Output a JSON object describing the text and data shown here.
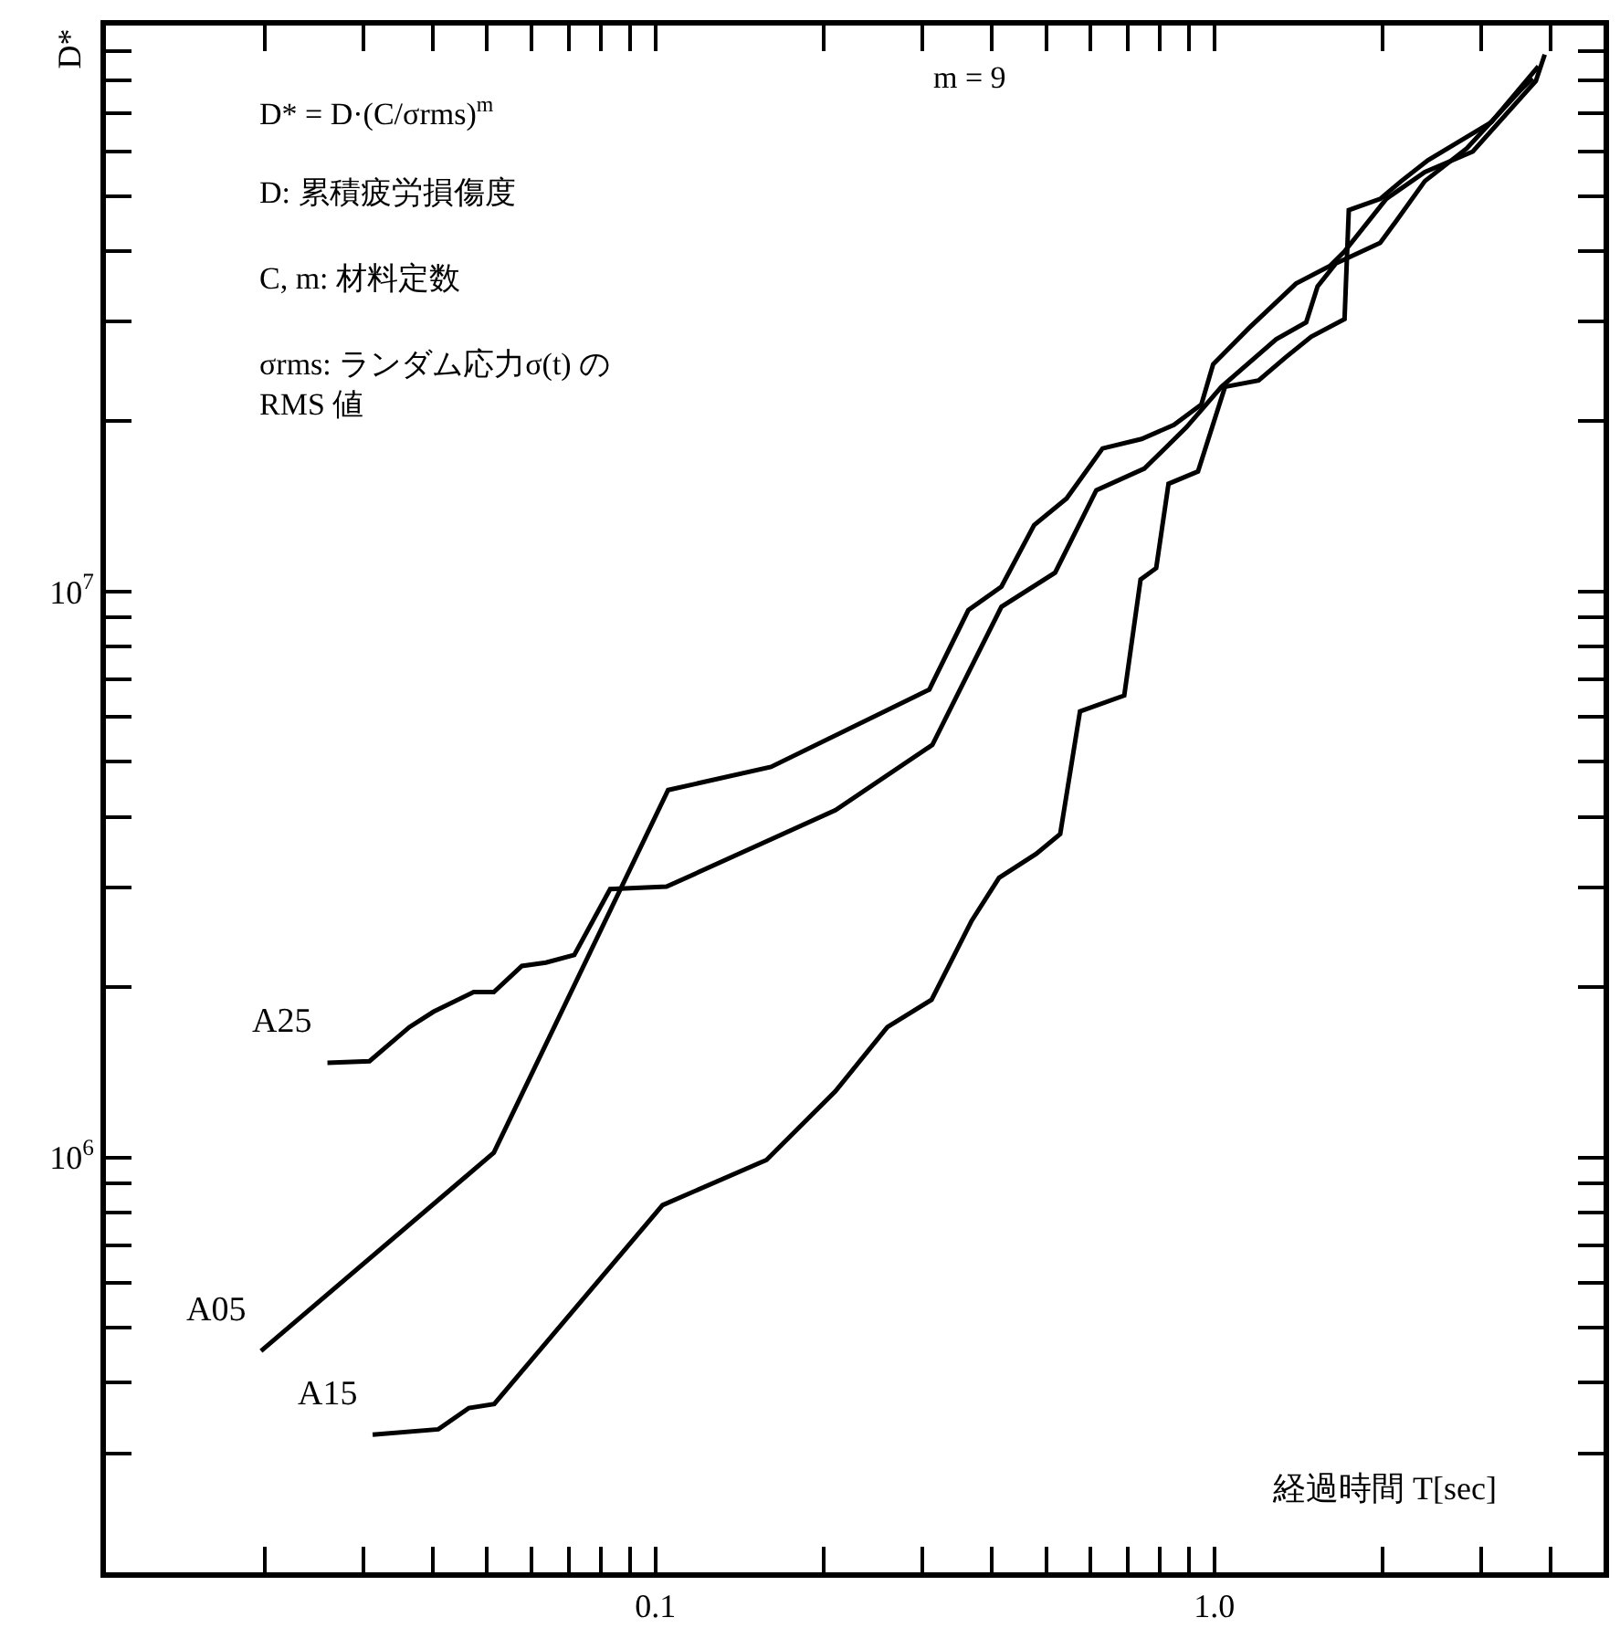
{
  "chart_data": {
    "type": "line",
    "ylabel": "D*",
    "xlabel": "経過時間 T[sec]",
    "log": "xy",
    "grid": false,
    "legend": false,
    "marker": "none",
    "line_style": "solid",
    "annotations": [
      "D* = D·(C/σrms)$^{m}$",
      "D: 累積疲労損傷度",
      "C, m: 材料定数",
      "σrms: ランダム応力σ(t) の\nRMS 値",
      "m = 9"
    ],
    "xlim": [
      0.0104,
      4.97
    ],
    "ylim": [
      185000,
      100000000
    ],
    "xticks": [
      {
        "value": 0.02,
        "label": null
      },
      {
        "value": 0.03,
        "label": null
      },
      {
        "value": 0.04,
        "label": null
      },
      {
        "value": 0.05,
        "label": null
      },
      {
        "value": 0.06,
        "label": null
      },
      {
        "value": 0.07,
        "label": null
      },
      {
        "value": 0.08,
        "label": null
      },
      {
        "value": 0.09,
        "label": null
      },
      {
        "value": 0.1,
        "label": "0.1"
      },
      {
        "value": 0.2,
        "label": null
      },
      {
        "value": 0.3,
        "label": null
      },
      {
        "value": 0.4,
        "label": null
      },
      {
        "value": 0.5,
        "label": null
      },
      {
        "value": 0.6,
        "label": null
      },
      {
        "value": 0.7,
        "label": null
      },
      {
        "value": 0.8,
        "label": null
      },
      {
        "value": 0.9,
        "label": null
      },
      {
        "value": 1,
        "label": "1.0"
      },
      {
        "value": 2,
        "label": null
      },
      {
        "value": 3,
        "label": null
      },
      {
        "value": 4,
        "label": null
      }
    ],
    "yticks": [
      {
        "value": 300000,
        "label": null
      },
      {
        "value": 400000,
        "label": null
      },
      {
        "value": 500000,
        "label": null
      },
      {
        "value": 600000,
        "label": null
      },
      {
        "value": 700000,
        "label": null
      },
      {
        "value": 800000,
        "label": null
      },
      {
        "value": 900000,
        "label": null
      },
      {
        "value": 1000000,
        "label": "10$^{6}$"
      },
      {
        "value": 2000000,
        "label": null
      },
      {
        "value": 3000000,
        "label": null
      },
      {
        "value": 4000000,
        "label": null
      },
      {
        "value": 5000000,
        "label": null
      },
      {
        "value": 6000000,
        "label": null
      },
      {
        "value": 7000000,
        "label": null
      },
      {
        "value": 8000000,
        "label": null
      },
      {
        "value": 9000000,
        "label": null
      },
      {
        "value": 10000000,
        "label": "10$^{7}$"
      },
      {
        "value": 20000000,
        "label": null
      },
      {
        "value": 30000000,
        "label": null
      },
      {
        "value": 40000000,
        "label": null
      },
      {
        "value": 50000000,
        "label": null
      },
      {
        "value": 60000000,
        "label": null
      },
      {
        "value": 70000000,
        "label": null
      },
      {
        "value": 80000000,
        "label": null
      },
      {
        "value": 90000000,
        "label": null
      }
    ],
    "series": [
      {
        "name": "A25",
        "color": "#000000",
        "x": [
          0.0259,
          0.0308,
          0.0363,
          0.0401,
          0.0473,
          0.0514,
          0.0577,
          0.0637,
          0.0716,
          0.083,
          0.1047,
          0.21,
          0.313,
          0.416,
          0.519,
          0.615,
          0.75,
          0.891,
          1.03,
          1.29,
          1.46,
          1.53,
          1.65,
          1.98,
          2.11,
          2.38,
          2.83,
          3.53,
          3.71
        ],
        "values": [
          1470000,
          1480000,
          1700000,
          1810000,
          1960000,
          1960000,
          2180000,
          2210000,
          2280000,
          2980000,
          3010000,
          4110000,
          5360000,
          9400000,
          10800000,
          15100000,
          16500000,
          19500000,
          23000000,
          27900000,
          29900000,
          34600000,
          38000000,
          41300000,
          45000000,
          53100000,
          60700000,
          76900000,
          80700000
        ]
      },
      {
        "name": "A05",
        "color": "#000000",
        "x": [
          0.0197,
          0.0514,
          0.1054,
          0.161,
          0.309,
          0.363,
          0.416,
          0.476,
          0.544,
          0.631,
          0.741,
          0.847,
          0.948,
          0.995,
          1.153,
          1.4,
          1.61,
          1.71,
          2.03,
          2.38,
          2.9,
          3.76,
          3.9
        ],
        "values": [
          455000,
          1020000,
          4460000,
          4900000,
          6710000,
          9270000,
          10200000,
          13100000,
          14600000,
          17900000,
          18600000,
          19700000,
          21400000,
          25200000,
          29200000,
          35000000,
          37600000,
          39900000,
          49400000,
          55100000,
          59900000,
          79800000,
          88900000
        ]
      },
      {
        "name": "A15",
        "color": "#000000",
        "x": [
          0.0312,
          0.0409,
          0.0464,
          0.0515,
          0.103,
          0.158,
          0.21,
          0.26,
          0.312,
          0.368,
          0.412,
          0.48,
          0.53,
          0.575,
          0.69,
          0.738,
          0.787,
          0.828,
          0.935,
          1.045,
          1.2,
          1.34,
          1.49,
          1.71,
          1.74,
          1.98,
          2.16,
          2.41,
          3.13,
          3.8
        ],
        "values": [
          324000,
          331000,
          361000,
          367000,
          824000,
          990000,
          1310000,
          1700000,
          1900000,
          2620000,
          3120000,
          3440000,
          3730000,
          6140000,
          6550000,
          10500000,
          11000000,
          15500000,
          16300000,
          23000000,
          23600000,
          25900000,
          28200000,
          30300000,
          47200000,
          49400000,
          53100000,
          57800000,
          67500000,
          84700000
        ]
      }
    ]
  }
}
